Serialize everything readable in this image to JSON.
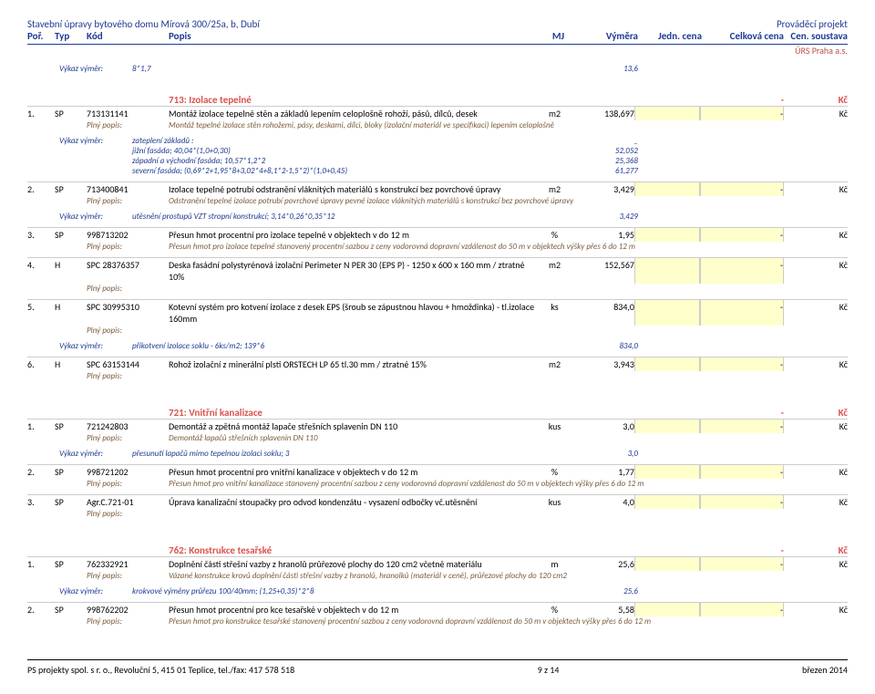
{
  "header": {
    "title_left": "Stavební úpravy bytového domu Mírová 300/25a, b, Dubí",
    "title_right": "Prováděcí projekt",
    "cols": {
      "por": "Poř.",
      "typ": "Typ",
      "kod": "Kód",
      "popis": "Popis",
      "mj": "MJ",
      "vymera": "Výměra",
      "jedn_cena": "Jedn. cena",
      "celkova_cena": "Celková cena",
      "cen_soustava": "Cen. soustava"
    },
    "subheader": "ÚRS Praha a.s."
  },
  "top_vykaz": {
    "label": "Výkaz výměr:",
    "text": "8*1,7",
    "value": "13,6"
  },
  "section_713": {
    "title": "713: Izolace tepelné",
    "dash": "-",
    "kc": "Kč",
    "items": [
      {
        "por": "1.",
        "typ": "SP",
        "kod": "713131141",
        "popis": "Montáž izolace tepelné stěn a základů lepením celoplošně rohoží, pásů, dílců, desek",
        "mj": "m2",
        "vymera": "138,697",
        "cc": "-",
        "kc": "Kč",
        "plny": {
          "label": "Plný popis:",
          "text": "Montáž tepelné izolace stěn rohožemi, pásy, deskami, dílci, bloky (izolační materiál ve specifikaci) lepením   celoplošně"
        },
        "vykaz": [
          {
            "label": "Výkaz výměr:",
            "text": "zateplení základů :",
            "val": "_"
          },
          {
            "label": "",
            "text": "jižní fasáda; 40,04*(1,0+0,30)",
            "val": "52,052"
          },
          {
            "label": "",
            "text": "západní a východní fasáda; 10,57*1,2*2",
            "val": "25,368"
          },
          {
            "label": "",
            "text": "severní fasáda; (0,69*2+1,95*8+3,02*4+8,1*2-1,5*2)*(1,0+0,45)",
            "val": "61,277"
          }
        ]
      },
      {
        "por": "2.",
        "typ": "SP",
        "kod": "713400841",
        "popis": "Izolace tepelné potrubí odstranění vláknitých materiálů s konstrukcí bez povrchové úpravy",
        "mj": "m2",
        "vymera": "3,429",
        "cc": "-",
        "kc": "Kč",
        "plny": {
          "label": "Plný popis:",
          "text": "Odstranění tepelné izolace potrubí povrchové úpravy pevné izolace vláknitých materiálů   s konstrukcí bez povrchové úpravy"
        },
        "vykaz": [
          {
            "label": "Výkaz výměr:",
            "text": "utěsnění prostupů VZT stropní konstrukcí; 3,14*0,26*0,35*12",
            "val": "3,429"
          }
        ]
      },
      {
        "por": "3.",
        "typ": "SP",
        "kod": "998713202",
        "popis": "Přesun hmot procentní pro izolace tepelné v objektech v do 12 m",
        "mj": "%",
        "vymera": "1,95",
        "cc": "-",
        "kc": "Kč",
        "plny": {
          "label": "Plný popis:",
          "text": "Přesun hmot pro izolace tepelné stanovený procentní sazbou z ceny vodorovná dopravní vzdálenost do 50 m v objektech výšky   přes 6 do 12 m"
        }
      },
      {
        "por": "4.",
        "typ": "H",
        "kod": "SPC 28376357",
        "popis": "Deska fasádní polystyrénová izolační Perimeter N PER 30 (EPS P) - 1250 x 600 x 160 mm / ztratné 10%",
        "mj": "m2",
        "vymera": "152,567",
        "cc": "-",
        "kc": "Kč",
        "plny_alone": "Plný popis:"
      },
      {
        "por": "5.",
        "typ": "H",
        "kod": "SPC 30995310",
        "popis": "Kotevní systém pro kotvení izolace z desek EPS (šroub se zápustnou hlavou + hmoždinka) - tl.izolace 160mm",
        "mj": "ks",
        "vymera": "834,0",
        "cc": "-",
        "kc": "Kč",
        "plny_alone": "Plný popis:",
        "vykaz": [
          {
            "label": "Výkaz výměr:",
            "text": "přikotvení izolace soklu - 6ks/m2; 139*6",
            "val": "834,0"
          }
        ]
      },
      {
        "por": "6.",
        "typ": "H",
        "kod": "SPC 63153144",
        "popis": "Rohož izolační z minerální plsti ORSTECH LP 65 tl.30 mm / ztratné 15%",
        "mj": "m2",
        "vymera": "3,943",
        "cc": "-",
        "kc": "Kč",
        "plny_alone": "Plný popis:"
      }
    ]
  },
  "section_721": {
    "title": "721: Vnitřní kanalizace",
    "dash": "-",
    "kc": "Kč",
    "items": [
      {
        "por": "1.",
        "typ": "SP",
        "kod": "721242803",
        "popis": "Demontáž a zpětná montáž lapače střešních splavenin DN 110",
        "mj": "kus",
        "vymera": "3,0",
        "cc": "-",
        "kc": "Kč",
        "plny": {
          "label": "Plný popis:",
          "text": "Demontáž lapačů střešních splavenin   DN 110"
        },
        "vykaz": [
          {
            "label": "Výkaz výměr:",
            "text": "přesunutí lapačů mimo tepelnou izolaci soklu; 3",
            "val": "3,0"
          }
        ]
      },
      {
        "por": "2.",
        "typ": "SP",
        "kod": "998721202",
        "popis": "Přesun hmot procentní pro vnitřní kanalizace v objektech v do 12 m",
        "mj": "%",
        "vymera": "1,77",
        "cc": "-",
        "kc": "Kč",
        "plny": {
          "label": "Plný popis:",
          "text": "Přesun hmot pro vnitřní kanalizace stanovený procentní sazbou z ceny vodorovná dopravní vzdálenost do 50 m v objektech výšky   přes 6 do 12 m"
        }
      },
      {
        "por": "3.",
        "typ": "SP",
        "kod": "Agr.C.721-01",
        "popis": "Úprava kanalizační stoupačky pro odvod kondenzátu - vysazení odbočky vč.utěsnění",
        "mj": "kus",
        "vymera": "4,0",
        "cc": "-",
        "kc": "Kč",
        "plny_alone": "Plný popis:"
      }
    ]
  },
  "section_762": {
    "title": "762: Konstrukce tesařské",
    "dash": "-",
    "kc": "Kč",
    "items": [
      {
        "por": "1.",
        "typ": "SP",
        "kod": "762332921",
        "popis": "Doplnění části střešní vazby z hranolů průřezové plochy do 120 cm2 včetně materiálu",
        "mj": "m",
        "vymera": "25,6",
        "cc": "-",
        "kc": "Kč",
        "plny": {
          "label": "Plný popis:",
          "text": "Vázané konstrukce krovů doplnění části střešní vazby z hranolů, hranolků (materiál v ceně), průřezové plochy   do 120 cm2"
        },
        "vykaz": [
          {
            "label": "Výkaz výměr:",
            "text": "krokvové výměny průřezu 100/40mm; (1,25+0,35)*2*8",
            "val": "25,6"
          }
        ]
      },
      {
        "por": "2.",
        "typ": "SP",
        "kod": "998762202",
        "popis": "Přesun hmot procentní pro kce tesařské v objektech v do 12 m",
        "mj": "%",
        "vymera": "5,58",
        "cc": "-",
        "kc": "Kč",
        "plny": {
          "label": "Plný popis:",
          "text": "Přesun hmot pro konstrukce tesařské stanovený procentní sazbou z ceny vodorovná dopravní vzdálenost do 50 m v objektech výšky   přes 6 do 12 m"
        }
      }
    ]
  },
  "footer": {
    "left": "PS projekty spol. s r. o., Revoluční 5, 415 01 Teplice, tel./fax: 417 578 518",
    "center": "9 z 14",
    "right": "březen 2014"
  }
}
